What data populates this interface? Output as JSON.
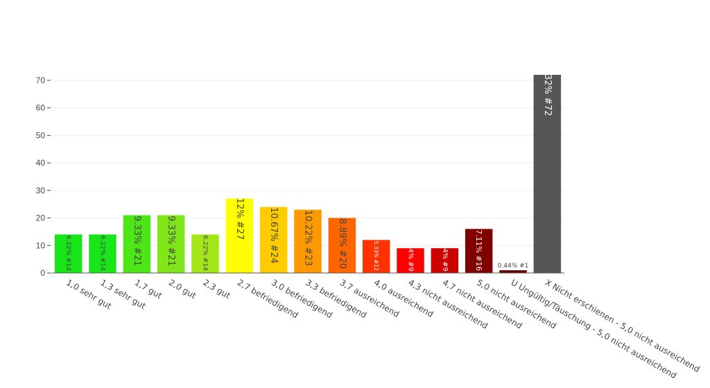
{
  "chart_data": {
    "type": "bar",
    "categories": [
      "1,0 sehr gut",
      "1,3 sehr gut",
      "1,7 gut",
      "2,0 gut",
      "2,3 gut",
      "2,7 befriedigend",
      "3,0 befriedigend",
      "3,3 befriedigend",
      "3,7 ausreichend",
      "4,0 ausreichend",
      "4,3 nicht ausreichend",
      "4,7 nicht ausreichend",
      "5,0 nicht ausreichend",
      "U Ungültig/Täuschung - 5,0 nicht ausreichend",
      "X Nicht erschienen - 5,0 nicht ausreichend"
    ],
    "values": [
      14,
      14,
      21,
      21,
      14,
      27,
      24,
      23,
      20,
      12,
      9,
      9,
      16,
      1,
      72
    ],
    "bar_labels": [
      "6.22% #14",
      "6.22% #14",
      "9.33% #21",
      "9.33% #21",
      "6.22% #14",
      "12% #27",
      "10.67% #24",
      "10.22% #23",
      "8.89% #20",
      "5.33% #12",
      "4% #9",
      "4% #9",
      "7.11% #16",
      "0.44% #1",
      "32% #72"
    ],
    "colors": [
      "#19e619",
      "#19e619",
      "#4ee619",
      "#80e619",
      "#a3e619",
      "#ffff00",
      "#ffcc00",
      "#ff9900",
      "#ff6600",
      "#ff3300",
      "#ff0000",
      "#cc0000",
      "#800000",
      "#660000",
      "#555555"
    ],
    "label_colors": [
      "#444444",
      "#444444",
      "#444444",
      "#444444",
      "#444444",
      "#444444",
      "#444444",
      "#444444",
      "#444444",
      "#ffffff",
      "#ffffff",
      "#ffffff",
      "#ffffff",
      "#444444",
      "#ffffff"
    ],
    "yticks": [
      0,
      10,
      20,
      30,
      40,
      50,
      60,
      70
    ],
    "ylim": [
      0,
      72
    ],
    "grid": true,
    "title": "",
    "xlabel": "",
    "ylabel": ""
  }
}
